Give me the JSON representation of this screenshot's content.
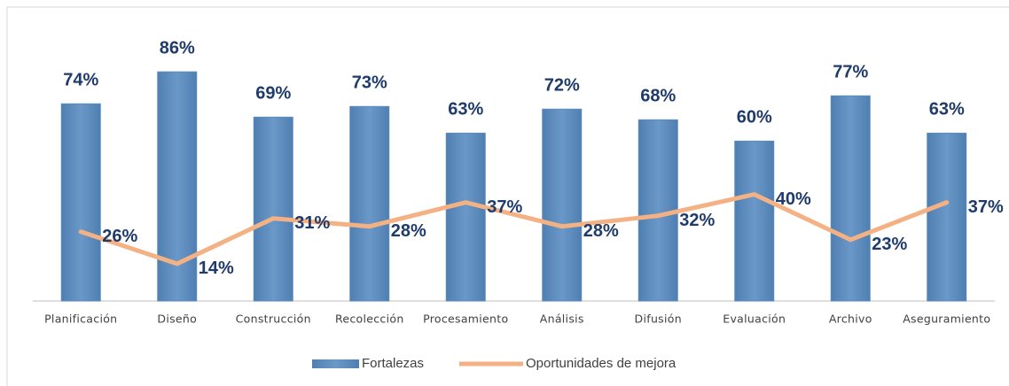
{
  "chart_data": {
    "type": "bar",
    "categories": [
      "Planificación",
      "Diseño",
      "Construcción",
      "Recolección",
      "Procesamiento",
      "Análisis",
      "Difusión",
      "Evaluación",
      "Archivo",
      "Aseguramiento"
    ],
    "series": [
      {
        "name": "Fortalezas",
        "type": "bar",
        "color": "#5b8bbd",
        "values": [
          74,
          86,
          69,
          73,
          63,
          72,
          68,
          60,
          77,
          63
        ],
        "value_labels": [
          "74%",
          "86%",
          "69%",
          "73%",
          "63%",
          "72%",
          "68%",
          "60%",
          "77%",
          "63%"
        ]
      },
      {
        "name": "Oportunidades de mejora",
        "type": "line",
        "color": "#f4b183",
        "values": [
          26,
          14,
          31,
          28,
          37,
          28,
          32,
          40,
          23,
          37
        ],
        "value_labels": [
          "26%",
          "14%",
          "31%",
          "28%",
          "37%",
          "28%",
          "32%",
          "40%",
          "23%",
          "37%"
        ]
      }
    ],
    "ylim": [
      0,
      100
    ],
    "legend": "bottom"
  }
}
